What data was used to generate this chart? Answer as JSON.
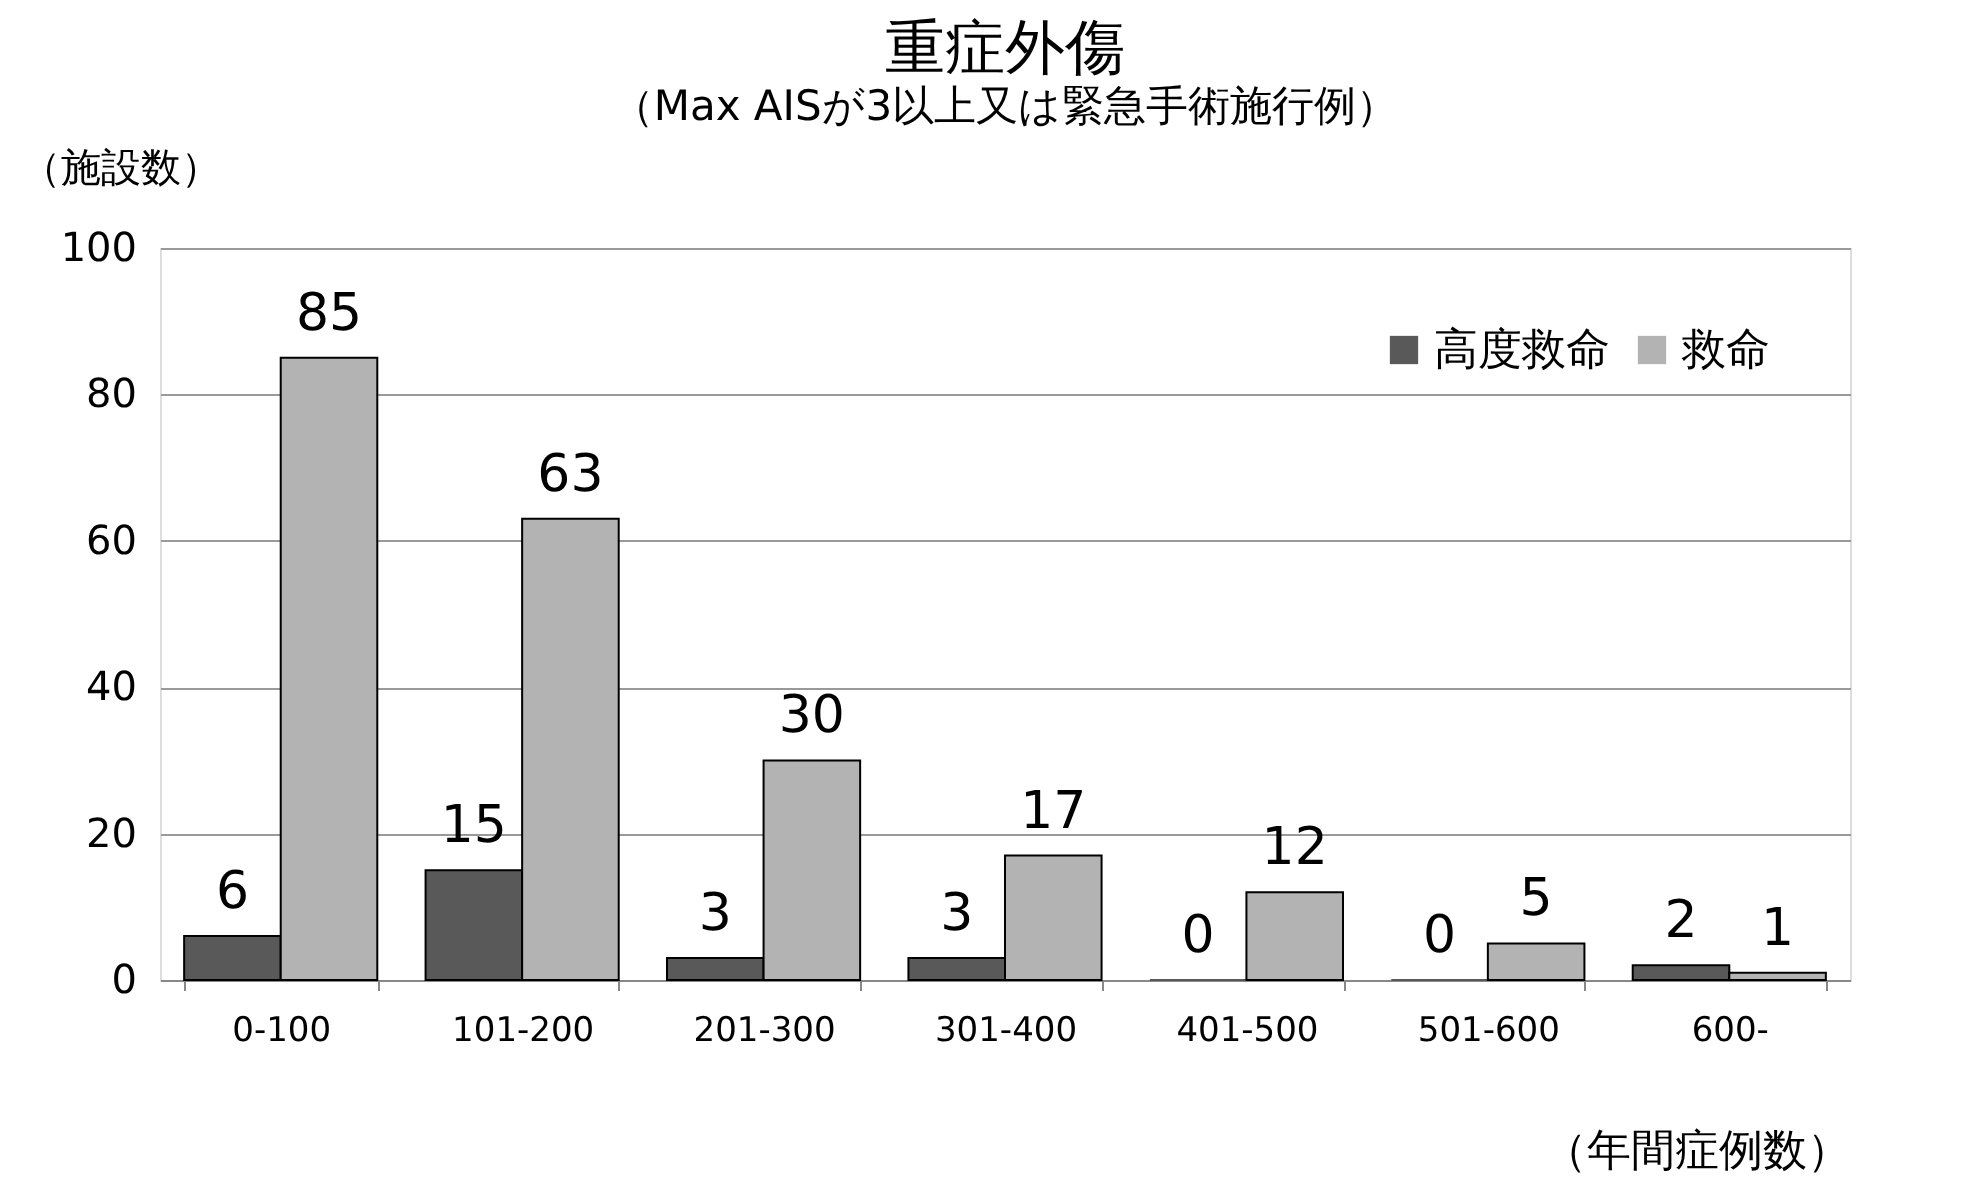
{
  "chart_data": {
    "type": "bar",
    "title": "重症外傷",
    "subtitle": "（Max AISが3以上又は緊急手術施行例）",
    "ylabel": "（施設数）",
    "xlabel": "（年間症例数）",
    "categories": [
      "0-100",
      "101-200",
      "201-300",
      "301-400",
      "401-500",
      "501-600",
      "600-"
    ],
    "series": [
      {
        "name": "高度救命",
        "color": "#595959",
        "values": [
          6,
          15,
          3,
          3,
          0,
          0,
          2
        ]
      },
      {
        "name": "救命",
        "color": "#b3b3b3",
        "values": [
          85,
          63,
          30,
          17,
          12,
          5,
          1
        ]
      }
    ],
    "ylim": [
      0,
      100
    ],
    "yticks": [
      0,
      20,
      40,
      60,
      80,
      100
    ],
    "grid": "y",
    "legend": "top right",
    "data_labels": true
  }
}
